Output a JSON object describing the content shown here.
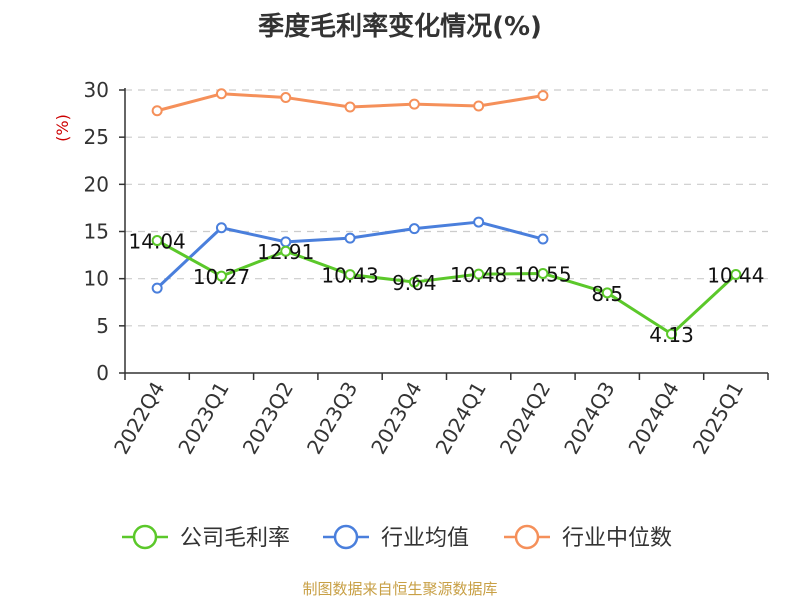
{
  "chart_data": {
    "type": "line",
    "title": "季度毛利率变化情况(%)",
    "ylabel": "(%)",
    "xlabel": "",
    "categories": [
      "2022Q4",
      "2023Q1",
      "2023Q2",
      "2023Q3",
      "2023Q4",
      "2024Q1",
      "2024Q2",
      "2024Q3",
      "2024Q4",
      "2025Q1"
    ],
    "ylim": [
      0,
      30
    ],
    "yticks": [
      0,
      5,
      10,
      15,
      20,
      25,
      30
    ],
    "grid": true,
    "legend_position": "bottom",
    "series": [
      {
        "name": "公司毛利率",
        "color": "#5bc82a",
        "values": [
          14.04,
          10.27,
          12.91,
          10.43,
          9.64,
          10.48,
          10.55,
          8.5,
          4.13,
          10.44
        ],
        "labels": [
          "14.04",
          "10.27",
          "12.91",
          "10.43",
          "9.64",
          "10.48",
          "10.55",
          "8.5",
          "4.13",
          "10.44"
        ]
      },
      {
        "name": "行业均值",
        "color": "#4a7fdc",
        "values": [
          9.0,
          15.4,
          13.9,
          14.3,
          15.3,
          16.0,
          14.2,
          null,
          null,
          null
        ]
      },
      {
        "name": "行业中位数",
        "color": "#f5905a",
        "values": [
          27.8,
          29.6,
          29.2,
          28.2,
          28.5,
          28.3,
          29.4,
          null,
          null,
          null
        ]
      }
    ]
  },
  "footer": {
    "source": "制图数据来自恒生聚源数据库"
  }
}
